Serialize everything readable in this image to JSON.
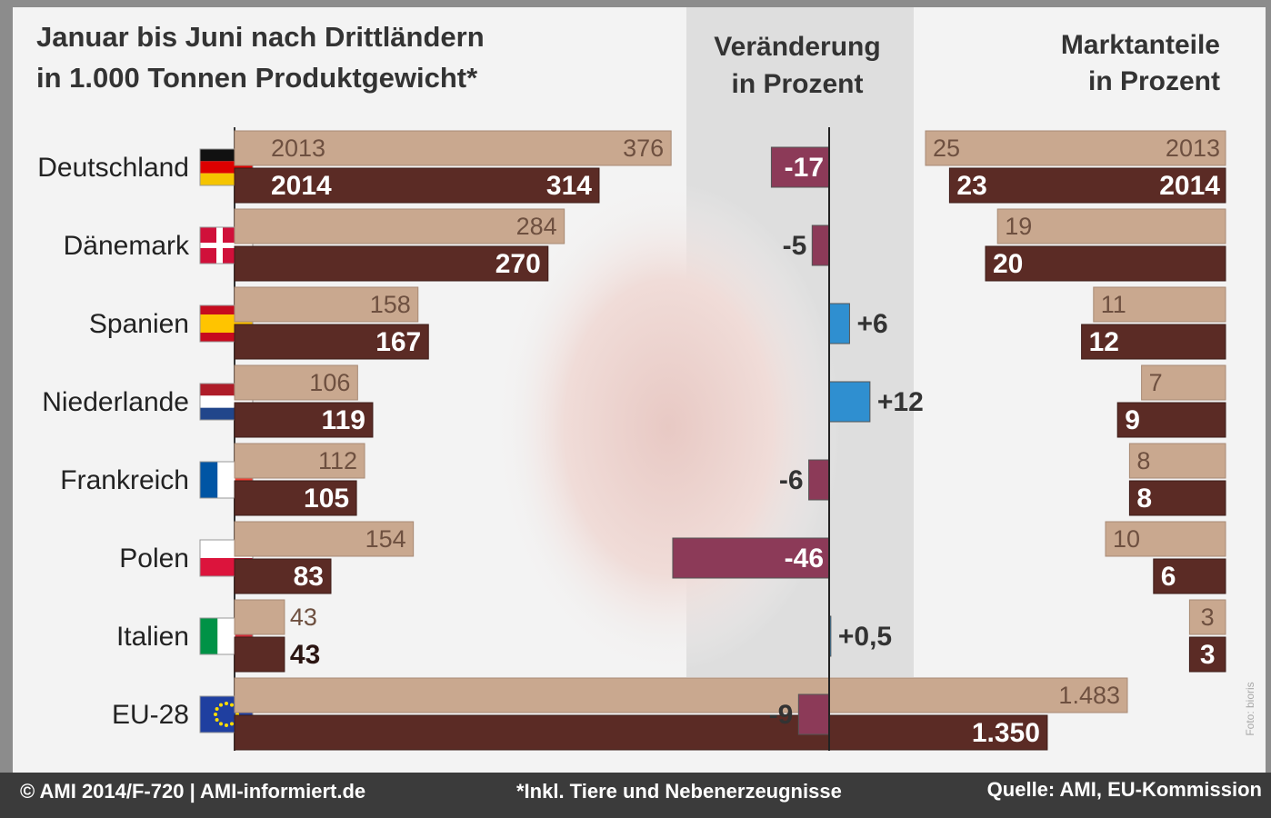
{
  "chart_data": [
    {
      "type": "hbar",
      "title": [
        "Januar bis Juni nach Drittländern",
        "in 1.000 Tonnen Produktgewicht*"
      ],
      "categories": [
        "Deutschland",
        "Dänemark",
        "Spanien",
        "Niederlande",
        "Frankreich",
        "Polen",
        "Italien",
        "EU-28"
      ],
      "series": [
        {
          "name": "2013",
          "color": "#c9a88f",
          "values": [
            376,
            284,
            158,
            106,
            112,
            154,
            43,
            1483
          ],
          "value_labels": [
            "376",
            "284",
            "158",
            "106",
            "112",
            "154",
            "43",
            "1.483"
          ]
        },
        {
          "name": "2014",
          "color": "#5b2b25",
          "values": [
            314,
            270,
            167,
            119,
            105,
            83,
            43,
            1350
          ],
          "value_labels": [
            "314",
            "270",
            "167",
            "119",
            "105",
            "83",
            "43",
            "1.350"
          ]
        }
      ]
    },
    {
      "type": "change",
      "title": [
        "Veränderung",
        "in Prozent"
      ],
      "values": [
        -17,
        -5,
        6,
        12,
        -6,
        -46,
        0.5,
        -9
      ],
      "value_labels": [
        "-17",
        "-5",
        "+6",
        "+12",
        "-6",
        "-46",
        "+0,5",
        "-9"
      ],
      "negative_color": "#8c3a58",
      "positive_color": "#2f8fd0"
    },
    {
      "type": "share",
      "title": [
        "Marktanteile",
        "in Prozent"
      ],
      "series": [
        {
          "name": "2013",
          "color": "#c9a88f",
          "values": [
            25,
            19,
            11,
            7,
            8,
            10,
            3
          ]
        },
        {
          "name": "2014",
          "color": "#5b2b25",
          "values": [
            23,
            20,
            12,
            9,
            8,
            6,
            3
          ]
        }
      ]
    }
  ],
  "footer": {
    "copyright": "© AMI 2014/F-720 | AMI-informiert.de",
    "note": "*Inkl. Tiere und Nebenerzeugnisse",
    "source": "Quelle: AMI, EU-Kommission"
  },
  "photo_credit": "Foto: bioris"
}
